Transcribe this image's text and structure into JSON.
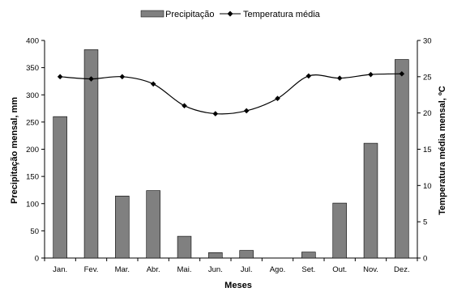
{
  "chart_data": {
    "type": "bar",
    "categories": [
      "Jan.",
      "Fev.",
      "Mar.",
      "Abr.",
      "Mai.",
      "Jun.",
      "Jul.",
      "Ago.",
      "Set.",
      "Out.",
      "Nov.",
      "Dez."
    ],
    "series": [
      {
        "name": "Precipitação",
        "type": "bar",
        "axis": "left",
        "color": "#808080",
        "values": [
          260,
          383,
          114,
          124,
          40,
          10,
          14,
          0,
          11,
          101,
          211,
          365
        ]
      },
      {
        "name": "Temperatura média",
        "type": "line",
        "axis": "right",
        "color": "#000000",
        "marker": "diamond",
        "values": [
          25.0,
          24.7,
          25.0,
          24.0,
          21.0,
          19.9,
          20.3,
          22.0,
          25.1,
          24.8,
          25.3,
          25.4
        ]
      }
    ],
    "xlabel": "Meses",
    "ylabel": "Precipitação mensal, mm",
    "y2label": "Temperatura média mensal, ºC",
    "ylim": [
      0,
      400
    ],
    "y2lim": [
      0,
      30
    ],
    "yticks": [
      0,
      50,
      100,
      150,
      200,
      250,
      300,
      350,
      400
    ],
    "y2ticks": [
      0,
      5,
      10,
      15,
      20,
      25,
      30
    ],
    "grid": false,
    "legend_position": "top-center"
  }
}
